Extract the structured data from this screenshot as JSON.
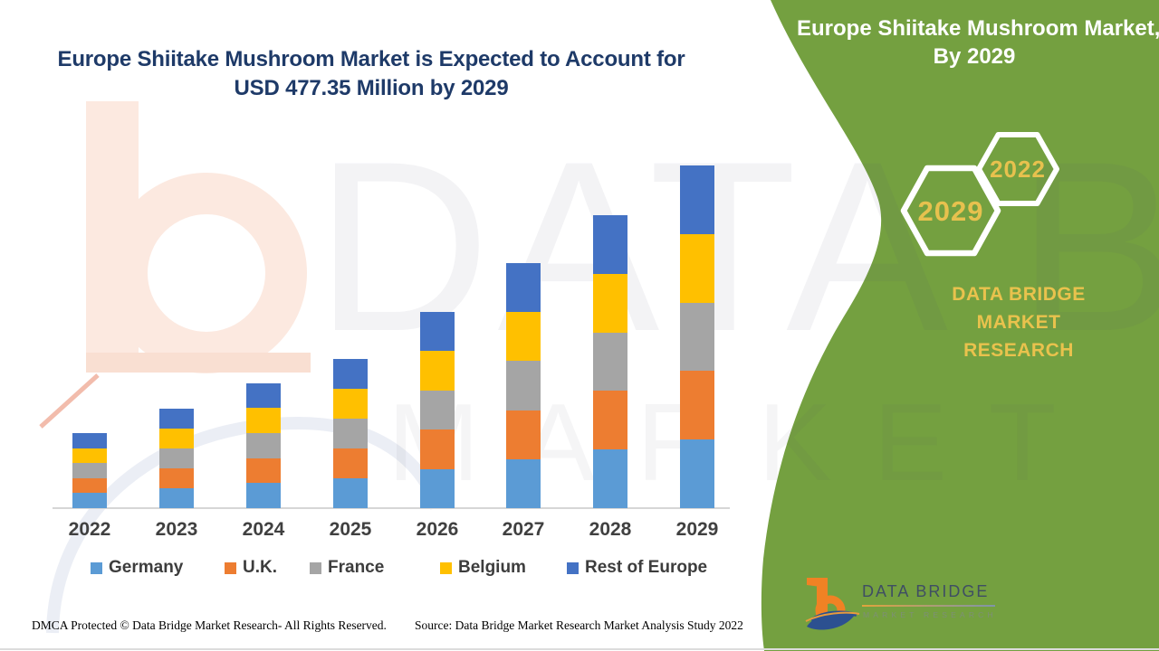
{
  "header": {
    "title_line1": "Europe Shiitake Mushroom Market is Expected to Account for",
    "title_line2": "USD 477.35 Million by 2029"
  },
  "watermark": {
    "line1": "DATA BRIDGE",
    "line2": "MARKET RESEARCH"
  },
  "chart_data": {
    "type": "bar",
    "stacked": true,
    "title": "Europe Shiitake Mushroom Market is Expected to Account for USD 477.35 Million by 2029",
    "unit": "USD Million",
    "categories": [
      "2022",
      "2023",
      "2024",
      "2025",
      "2026",
      "2027",
      "2028",
      "2029"
    ],
    "series": [
      {
        "name": "Germany",
        "color": "#5B9BD5",
        "values": [
          20.9,
          27.7,
          34.8,
          41.6,
          54.7,
          68.3,
          81.6,
          95.5
        ]
      },
      {
        "name": "U.K.",
        "color": "#ED7D31",
        "values": [
          20.9,
          27.7,
          34.8,
          41.6,
          54.7,
          68.3,
          81.6,
          95.5
        ]
      },
      {
        "name": "France",
        "color": "#A5A5A5",
        "values": [
          20.9,
          27.7,
          34.8,
          41.6,
          54.7,
          68.3,
          81.6,
          95.5
        ]
      },
      {
        "name": "Belgium",
        "color": "#FFC000",
        "values": [
          20.9,
          27.7,
          34.8,
          41.6,
          54.7,
          68.3,
          81.6,
          95.5
        ]
      },
      {
        "name": "Rest of Europe",
        "color": "#4472C4",
        "values": [
          20.9,
          27.8,
          34.6,
          41.4,
          54.5,
          68.1,
          81.7,
          95.35
        ]
      }
    ],
    "totals": [
      104.5,
      138.6,
      173.8,
      207.8,
      273.3,
      341.3,
      408.1,
      477.35
    ],
    "ylim": [
      0,
      500
    ],
    "grid": false,
    "y_axis_shown": false,
    "legend_position": "bottom"
  },
  "side_panel": {
    "panel_color": "#74A040",
    "title_line1": "Europe Shiitake Mushroom Market,",
    "title_line2": "By 2029",
    "badges": [
      {
        "label": "2029"
      },
      {
        "label": "2022"
      }
    ],
    "badge_text_color": "#E7C14E",
    "brand_line1": "DATA BRIDGE MARKET",
    "brand_line2": "RESEARCH"
  },
  "logo": {
    "name_text": "DATA BRIDGE",
    "tagline": "MARKET RESEARCH"
  },
  "footer": {
    "dmca": "DMCA Protected © Data Bridge Market Research- All Rights Reserved.",
    "source": "Source: Data Bridge Market Research Market Analysis Study 2022"
  }
}
